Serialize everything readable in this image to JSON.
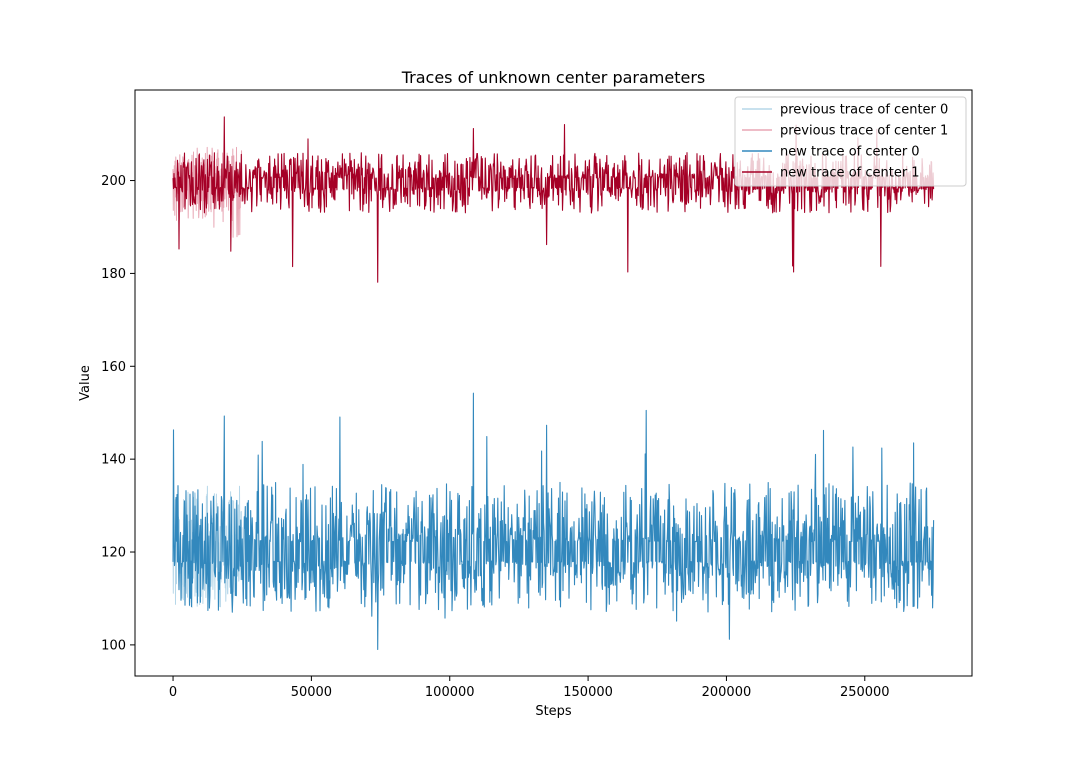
{
  "chart_data": {
    "type": "line",
    "title": "Traces of unknown center parameters",
    "xlabel": "Steps",
    "ylabel": "Value",
    "xlim": [
      -13750,
      288750
    ],
    "ylim": [
      93.3,
      219.5
    ],
    "xticks": [
      0,
      50000,
      100000,
      150000,
      200000,
      250000
    ],
    "xtick_labels": [
      "0",
      "50000",
      "100000",
      "150000",
      "200000",
      "250000"
    ],
    "yticks": [
      100,
      120,
      140,
      160,
      180,
      200
    ],
    "ytick_labels": [
      "100",
      "120",
      "140",
      "160",
      "180",
      "200"
    ],
    "grid": false,
    "legend_position": "top-right",
    "series": [
      {
        "name": "previous trace of center 0",
        "color": "#9ecae1",
        "opacity": 0.75,
        "x_range": [
          0,
          25000
        ],
        "center": 120.0,
        "typical_band": [
          108,
          133
        ],
        "extremes": {
          "min": 101.5,
          "max": 145.2
        }
      },
      {
        "name": "previous trace of center 1",
        "color": "#e08a9c",
        "opacity": 0.75,
        "x_range": [
          0,
          25000
        ],
        "center": 199.5,
        "typical_band": [
          191,
          207
        ],
        "extremes": {
          "min": 186.3,
          "max": 209.0
        }
      },
      {
        "name": "new trace of center 0",
        "color": "#3288bd",
        "opacity": 1,
        "x_range": [
          0,
          275000
        ],
        "center": 120.0,
        "typical_band": [
          107,
          135
        ],
        "extremes": {
          "min": 99.0,
          "max": 154.2
        },
        "spikes": [
          {
            "x": 200,
            "y": 146.3
          },
          {
            "x": 18500,
            "y": 149.3
          },
          {
            "x": 74000,
            "y": 99.0
          },
          {
            "x": 108500,
            "y": 154.2
          },
          {
            "x": 135000,
            "y": 147.3
          },
          {
            "x": 171000,
            "y": 150.5
          },
          {
            "x": 201000,
            "y": 101.2
          },
          {
            "x": 235000,
            "y": 146.2
          }
        ]
      },
      {
        "name": "new trace of center 1",
        "color": "#a50026",
        "opacity": 1,
        "x_range": [
          0,
          275000
        ],
        "center": 199.5,
        "typical_band": [
          193,
          206
        ],
        "extremes": {
          "min": 178.1,
          "max": 213.7
        },
        "spikes": [
          {
            "x": 18500,
            "y": 213.7
          },
          {
            "x": 74000,
            "y": 178.1
          },
          {
            "x": 108500,
            "y": 211.2
          },
          {
            "x": 135000,
            "y": 186.2
          },
          {
            "x": 224000,
            "y": 181.6
          }
        ]
      }
    ]
  }
}
